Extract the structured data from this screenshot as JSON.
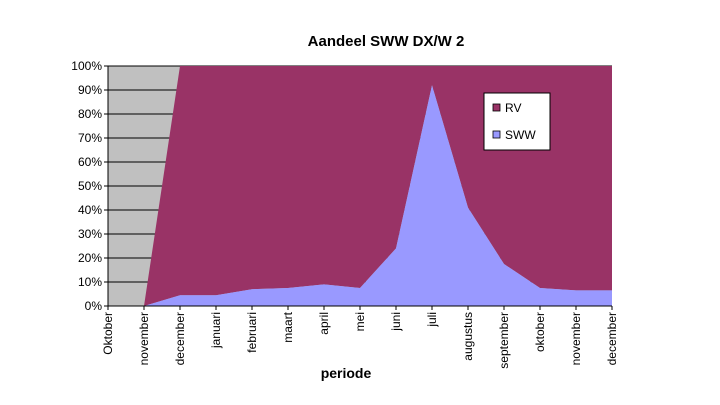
{
  "chart_data": {
    "type": "area",
    "title": "Aandeel SWW DX/W 2",
    "xlabel": "periode",
    "ylabel": "",
    "categories": [
      "Oktober",
      "november",
      "december",
      "januari",
      "februari",
      "maart",
      "april",
      "mei",
      "juni",
      "juli",
      "augustus",
      "september",
      "oktober",
      "november",
      "december"
    ],
    "series": [
      {
        "name": "RV",
        "values": [
          0,
          0,
          95.5,
          95.5,
          93,
          92.5,
          91,
          92.5,
          76,
          8,
          59,
          82.5,
          92.5,
          93.5,
          93.5
        ]
      },
      {
        "name": "SWW",
        "values": [
          0,
          0,
          4.5,
          4.5,
          7,
          7.5,
          9,
          7.5,
          24,
          92,
          41,
          17.5,
          7.5,
          6.5,
          6.5
        ]
      }
    ],
    "stacking": "percent",
    "ylim": [
      0,
      100
    ],
    "yticks": [
      "0%",
      "10%",
      "20%",
      "30%",
      "40%",
      "50%",
      "60%",
      "70%",
      "80%",
      "90%",
      "100%"
    ],
    "grid": true,
    "legend_position": "right",
    "colors": {
      "RV": "#993366",
      "SWW": "#9999ff",
      "plot_background": "#c0c0c0",
      "gridline": "#000000"
    }
  }
}
